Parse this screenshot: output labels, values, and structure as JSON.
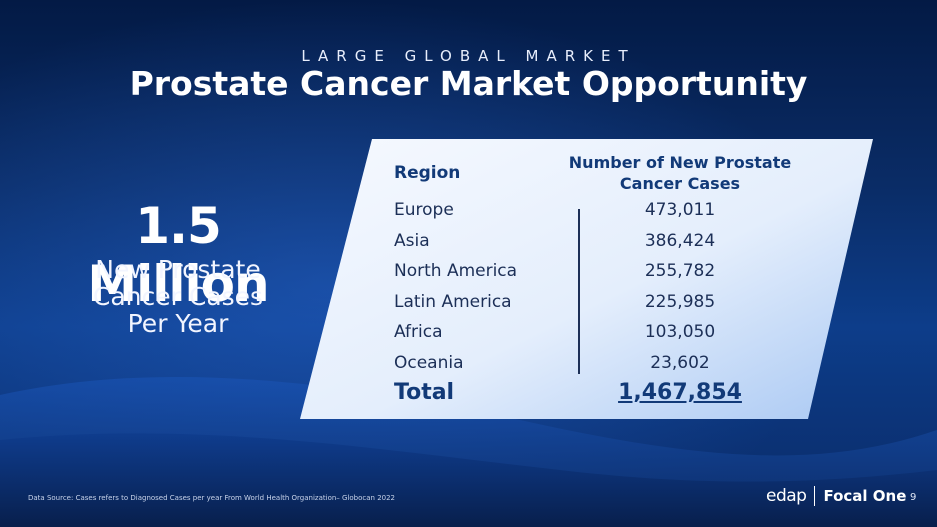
{
  "slide": {
    "eyebrow": "LARGE GLOBAL MARKET",
    "title": "Prostate Cancer Market Opportunity",
    "page_number": "9"
  },
  "stat": {
    "value": "1.5 Million",
    "caption_lines": [
      "New Prostate",
      "Cancer Cases",
      "Per Year"
    ]
  },
  "table": {
    "header_region": "Region",
    "header_cases_lines": [
      "Number of New Prostate",
      "Cancer Cases"
    ],
    "rows": [
      {
        "region": "Europe",
        "cases": "473,011"
      },
      {
        "region": "Asia",
        "cases": "386,424"
      },
      {
        "region": "North America",
        "cases": "255,782"
      },
      {
        "region": "Latin America",
        "cases": "225,985"
      },
      {
        "region": "Africa",
        "cases": "103,050"
      },
      {
        "region": "Oceania",
        "cases": "23,602"
      }
    ],
    "total_label": "Total",
    "total_value": "1,467,854"
  },
  "footer": {
    "source": "Data Source: Cases refers to Diagnosed Cases per year From World Health Organization– Globocan 2022",
    "logo_left": "edap",
    "logo_right": "Focal One"
  },
  "colors": {
    "background": "#0a2c66",
    "panel": "#e8f1ff",
    "accent_text": "#123a78"
  }
}
